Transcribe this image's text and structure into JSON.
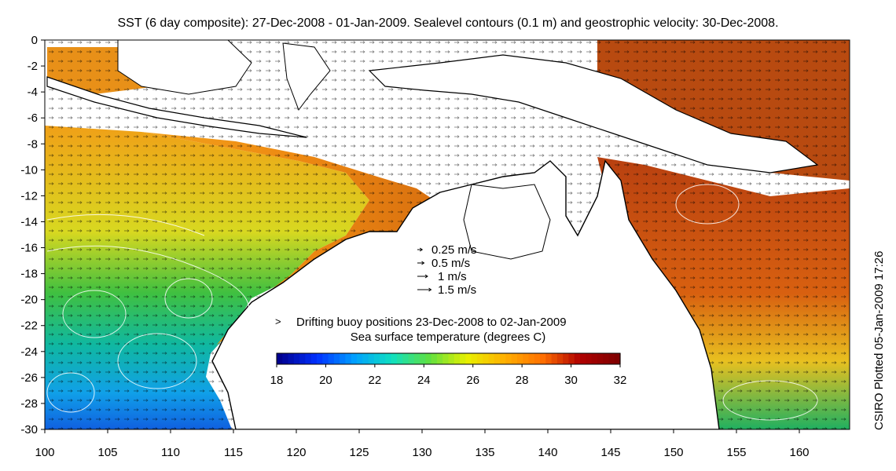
{
  "title": "SST (6 day composite): 27-Dec-2008 - 01-Jan-2009. Sealevel contours (0.1 m) and geostrophic velocity: 30-Dec-2008.",
  "side_label": "CSIRO Plotted 05-Jan-2009 17:26",
  "map": {
    "lon_range": [
      100,
      164
    ],
    "lat_range": [
      -30,
      0
    ],
    "lon_ticks": [
      "100",
      "105",
      "110",
      "115",
      "120",
      "125",
      "130",
      "135",
      "140",
      "145",
      "150",
      "155",
      "160"
    ],
    "lat_ticks": [
      "0",
      "-2",
      "-4",
      "-6",
      "-8",
      "-10",
      "-12",
      "-14",
      "-16",
      "-18",
      "-20",
      "-22",
      "-24",
      "-26",
      "-28",
      "-30"
    ]
  },
  "velocity_legend": {
    "items": [
      {
        "label": "0.25 m/s",
        "speed": 0.25
      },
      {
        "label": "0.5 m/s",
        "speed": 0.5
      },
      {
        "label": "1 m/s",
        "speed": 1
      },
      {
        "label": "1.5 m/s",
        "speed": 1.5
      }
    ]
  },
  "buoy_legend": {
    "label": "Drifting buoy positions 23-Dec-2008 to 02-Jan-2009",
    "color": "#e020e0"
  },
  "colorbar": {
    "title": "Sea surface temperature (degrees C)",
    "min": 18,
    "max": 32,
    "tick_labels": [
      "18",
      "20",
      "22",
      "24",
      "26",
      "28",
      "30",
      "32"
    ],
    "colors": [
      "#00008f",
      "#0030ff",
      "#00a0ff",
      "#10e0c0",
      "#60e040",
      "#e8f000",
      "#ffb000",
      "#ff7000",
      "#b00000",
      "#800000"
    ]
  }
}
